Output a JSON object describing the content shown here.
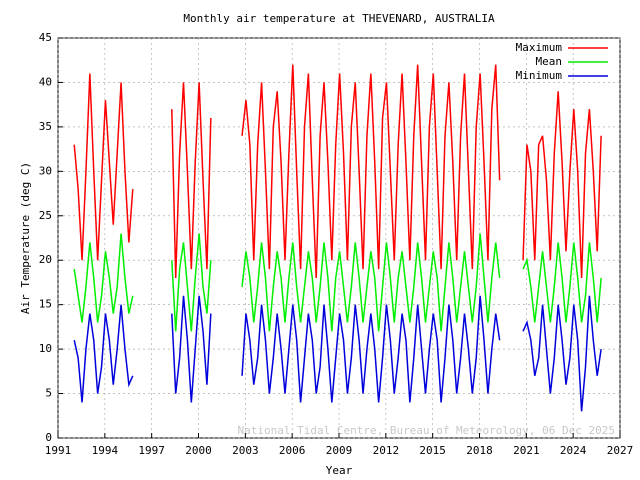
{
  "chart_data": {
    "type": "line",
    "title": "Monthly air temperature at THEVENARD, AUSTRALIA",
    "x_label": "Year",
    "y_label": "Air Temperature (deg C)",
    "annotation": "National Tidal Centre, Bureau of Meteorology, 06 Dec 2025",
    "xlim": [
      1991,
      2027
    ],
    "ylim": [
      0,
      45
    ],
    "xticks": [
      1991,
      1994,
      1997,
      2000,
      2003,
      2006,
      2009,
      2012,
      2015,
      2018,
      2021,
      2024,
      2027
    ],
    "yticks": [
      0,
      5,
      10,
      15,
      20,
      25,
      30,
      35,
      40,
      45
    ],
    "grid": true,
    "legend": "upper right",
    "x": [
      1992.04,
      1992.29,
      1992.54,
      1992.79,
      1993.04,
      1993.29,
      1993.54,
      1993.79,
      1994.04,
      1994.29,
      1994.54,
      1994.79,
      1995.04,
      1995.29,
      1995.54,
      1995.79,
      1997.0,
      1998.29,
      1998.54,
      1998.79,
      1999.04,
      1999.29,
      1999.54,
      1999.79,
      2000.04,
      2000.29,
      2000.54,
      2000.79,
      2002.0,
      2002.79,
      2003.04,
      2003.29,
      2003.54,
      2003.79,
      2004.04,
      2004.29,
      2004.54,
      2004.79,
      2005.04,
      2005.29,
      2005.54,
      2005.79,
      2006.04,
      2006.29,
      2006.54,
      2006.79,
      2007.04,
      2007.29,
      2007.54,
      2007.79,
      2008.04,
      2008.29,
      2008.54,
      2008.79,
      2009.04,
      2009.29,
      2009.54,
      2009.79,
      2010.04,
      2010.29,
      2010.54,
      2010.79,
      2011.04,
      2011.29,
      2011.54,
      2011.79,
      2012.04,
      2012.29,
      2012.54,
      2012.79,
      2013.04,
      2013.29,
      2013.54,
      2013.79,
      2014.04,
      2014.29,
      2014.54,
      2014.79,
      2015.04,
      2015.29,
      2015.54,
      2015.79,
      2016.04,
      2016.29,
      2016.54,
      2016.79,
      2017.04,
      2017.29,
      2017.54,
      2017.79,
      2018.04,
      2018.29,
      2018.54,
      2018.79,
      2019.04,
      2019.29,
      2020.0,
      2020.79,
      2021.04,
      2021.29,
      2021.54,
      2021.79,
      2022.04,
      2022.29,
      2022.54,
      2022.79,
      2023.04,
      2023.29,
      2023.54,
      2023.79,
      2024.04,
      2024.29,
      2024.54,
      2024.79,
      2025.04,
      2025.29,
      2025.54,
      2025.79
    ],
    "series": [
      {
        "name": "Maximum",
        "color": "#ff0000",
        "values": [
          33,
          28,
          20,
          30,
          41,
          30,
          20,
          29,
          38,
          31,
          24,
          32,
          40,
          30,
          22,
          28,
          null,
          37,
          18,
          32,
          40,
          30,
          19,
          31,
          40,
          29,
          19,
          36,
          null,
          34,
          38,
          33,
          20,
          33,
          40,
          30,
          19,
          35,
          39,
          31,
          20,
          32,
          42,
          30,
          19,
          35,
          41,
          29,
          18,
          34,
          40,
          31,
          20,
          33,
          41,
          32,
          20,
          35,
          40,
          30,
          19,
          34,
          41,
          31,
          19,
          36,
          40,
          30,
          20,
          33,
          41,
          31,
          20,
          34,
          42,
          31,
          20,
          35,
          41,
          30,
          19,
          34,
          40,
          31,
          20,
          34,
          41,
          30,
          19,
          35,
          41,
          31,
          20,
          37,
          42,
          29,
          null,
          20,
          33,
          30,
          20,
          33,
          34,
          29,
          20,
          32,
          39,
          31,
          21,
          30,
          37,
          30,
          18,
          32,
          37,
          30,
          21,
          34
        ]
      },
      {
        "name": "Mean",
        "color": "#00ee00",
        "values": [
          19,
          16,
          13,
          17,
          22,
          18,
          13,
          16,
          21,
          18,
          14,
          17,
          23,
          18,
          14,
          16,
          null,
          20,
          12,
          19,
          22,
          17,
          12,
          18,
          23,
          17,
          14,
          20,
          null,
          17,
          21,
          18,
          13,
          17,
          22,
          18,
          12,
          17,
          21,
          18,
          13,
          18,
          22,
          17,
          13,
          17,
          21,
          18,
          13,
          17,
          22,
          18,
          12,
          18,
          21,
          17,
          13,
          17,
          22,
          18,
          13,
          17,
          21,
          18,
          12,
          17,
          22,
          18,
          13,
          18,
          21,
          17,
          13,
          17,
          22,
          18,
          13,
          17,
          21,
          18,
          12,
          17,
          22,
          18,
          13,
          17,
          21,
          17,
          13,
          17,
          23,
          18,
          13,
          18,
          22,
          18,
          null,
          19,
          20,
          17,
          13,
          17,
          21,
          17,
          13,
          17,
          22,
          18,
          13,
          17,
          22,
          18,
          13,
          16,
          22,
          18,
          13,
          18
        ]
      },
      {
        "name": "Minimum",
        "color": "#0000dd",
        "values": [
          11,
          9,
          4,
          10,
          14,
          11,
          5,
          8,
          14,
          11,
          6,
          10,
          15,
          10,
          6,
          7,
          null,
          14,
          5,
          9,
          16,
          11,
          4,
          10,
          16,
          12,
          6,
          14,
          null,
          7,
          14,
          11,
          6,
          9,
          15,
          11,
          5,
          9,
          14,
          10,
          5,
          10,
          15,
          11,
          4,
          9,
          14,
          11,
          5,
          8,
          15,
          10,
          4,
          9,
          14,
          11,
          5,
          9,
          15,
          11,
          5,
          10,
          14,
          10,
          4,
          9,
          15,
          11,
          5,
          9,
          14,
          11,
          4,
          9,
          15,
          10,
          5,
          10,
          14,
          11,
          4,
          9,
          15,
          11,
          5,
          9,
          14,
          10,
          5,
          9,
          16,
          11,
          5,
          10,
          14,
          11,
          null,
          12,
          13,
          11,
          7,
          9,
          15,
          10,
          5,
          9,
          15,
          11,
          6,
          9,
          15,
          11,
          3,
          8,
          16,
          11,
          7,
          10
        ]
      }
    ]
  }
}
